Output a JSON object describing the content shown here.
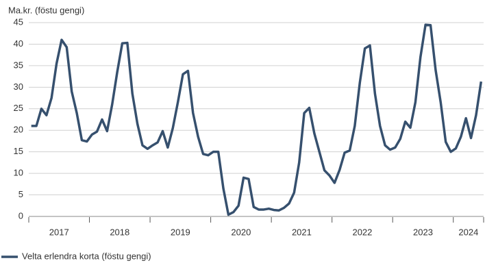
{
  "chart_data": {
    "type": "line",
    "y_label": "Ma.kr. (föstu gengi)",
    "categories": [
      "2017",
      null,
      null,
      null,
      null,
      null,
      null,
      null,
      null,
      null,
      null,
      null,
      "2018",
      null,
      null,
      null,
      null,
      null,
      null,
      null,
      null,
      null,
      null,
      null,
      "2019",
      null,
      null,
      null,
      null,
      null,
      null,
      null,
      null,
      null,
      null,
      null,
      "2020",
      null,
      null,
      null,
      null,
      null,
      null,
      null,
      null,
      null,
      null,
      null,
      "2021",
      null,
      null,
      null,
      null,
      null,
      null,
      null,
      null,
      null,
      null,
      null,
      "2022",
      null,
      null,
      null,
      null,
      null,
      null,
      null,
      null,
      null,
      null,
      null,
      "2023",
      null,
      null,
      null,
      null,
      null,
      null,
      null,
      null,
      null,
      null,
      null,
      "2024",
      null,
      null,
      null,
      null,
      null
    ],
    "series": [
      {
        "name": "Velta erlendra korta (föstu gengi)",
        "color": "#36506e",
        "values": [
          21,
          21,
          25,
          23.5,
          27.5,
          35.5,
          41,
          39.3,
          29,
          24,
          17.7,
          17.4,
          19,
          19.7,
          22.5,
          19.8,
          26,
          33.5,
          40.2,
          40.3,
          28.5,
          21.5,
          16.5,
          15.7,
          16.5,
          17.2,
          19.8,
          16,
          20.5,
          26.5,
          33,
          33.8,
          24,
          18.5,
          14.5,
          14.2,
          15,
          15,
          6.5,
          0.4,
          1,
          2.5,
          9,
          8.7,
          2.2,
          1.6,
          1.6,
          1.8,
          1.5,
          1.4,
          2,
          3,
          5.5,
          12.5,
          24,
          25.2,
          19.3,
          15,
          10.7,
          9.5,
          7.8,
          10.8,
          14.8,
          15.3,
          21,
          31,
          39,
          39.7,
          28.5,
          21,
          16.5,
          15.5,
          16,
          18,
          22,
          20.6,
          26.5,
          37,
          44.5,
          44.4,
          34,
          26.5,
          17.3,
          15,
          15.8,
          18.5,
          22.8,
          18.2,
          23.5,
          31.3
        ]
      }
    ],
    "ylim": [
      0,
      45
    ],
    "yticks": [
      0,
      5,
      10,
      15,
      20,
      25,
      30,
      35,
      40,
      45
    ],
    "grid": true,
    "legend": "bottom-left"
  }
}
